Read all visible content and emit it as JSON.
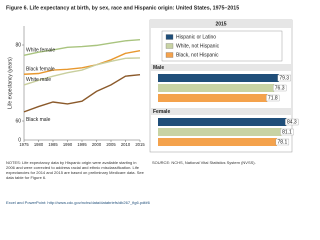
{
  "title": "Figure 6. Life expectancy at birth, by sex, race and Hispanic origin: United States, 1975–2015",
  "chart_data": [
    {
      "type": "line",
      "ylabel": "Life expectancy (years)",
      "axis_break_label": "0",
      "x": [
        1975,
        1980,
        1985,
        1990,
        1995,
        2000,
        2005,
        2010,
        2015
      ],
      "xlim": [
        1975,
        2015
      ],
      "xticks": [
        1975,
        1980,
        1985,
        1990,
        1995,
        2000,
        2005,
        2010,
        2015
      ],
      "ylim": [
        55,
        85
      ],
      "yticks": [
        60,
        80
      ],
      "series": [
        {
          "name": "White female",
          "color": "#a9c47f",
          "values": [
            77.3,
            78.1,
            78.7,
            79.4,
            79.6,
            79.9,
            80.5,
            81.1,
            81.4
          ]
        },
        {
          "name": "Black female",
          "color": "#e8982e",
          "values": [
            72.3,
            72.5,
            73.4,
            73.6,
            74.0,
            74.8,
            76.1,
            77.8,
            78.5
          ]
        },
        {
          "name": "White male",
          "color": "#c9cf9e",
          "values": [
            69.5,
            70.7,
            71.8,
            72.7,
            73.4,
            74.8,
            75.7,
            76.5,
            76.6
          ]
        },
        {
          "name": "Black male",
          "color": "#8b5a2b",
          "values": [
            62.4,
            63.8,
            65.0,
            64.5,
            65.2,
            67.8,
            69.5,
            71.8,
            72.2
          ]
        }
      ]
    },
    {
      "type": "hbar",
      "title": "2015",
      "categories": [
        "Male",
        "Female"
      ],
      "xlim": [
        0,
        90
      ],
      "series": [
        {
          "name": "Hispanic or Latino",
          "color": "#1f4e79",
          "values": [
            79.3,
            84.3
          ]
        },
        {
          "name": "White, not Hispanic",
          "color": "#c8d3a4",
          "values": [
            76.3,
            81.1
          ]
        },
        {
          "name": "Black, not Hispanic",
          "color": "#f4a24c",
          "values": [
            71.8,
            78.1
          ]
        }
      ]
    }
  ],
  "notes": "NOTES: Life expectancy data by Hispanic origin were available starting in 2006 and were corrected to address racial and ethnic misclassification. Life expectancies for 2014 and 2015 are based on preliminary Medicare data. See data table for Figure 6.",
  "source": "SOURCE: NCHS, National Vital Statistics System (NVSS).",
  "footer": "Excel and PowerPoint: http://www.cdc.gov/nchs/data/databriefs/db267_fig6.pdf#6"
}
